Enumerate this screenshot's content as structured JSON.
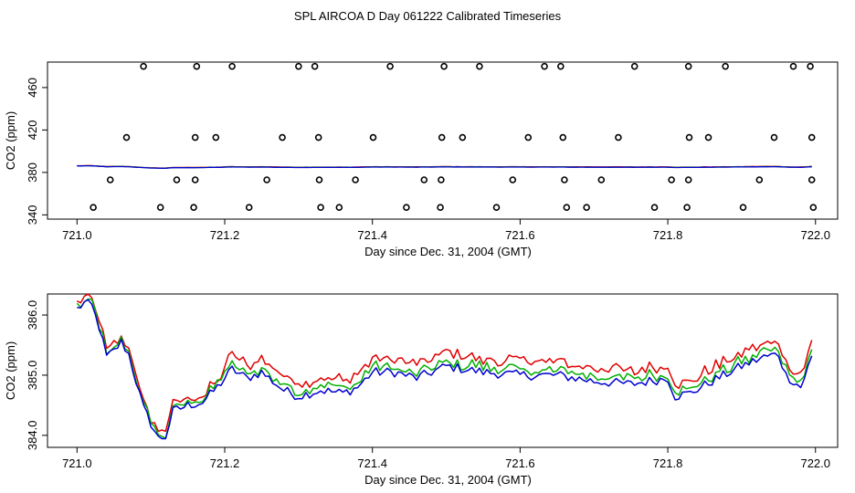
{
  "title": "SPL AIRCOA D  Day 061222  Calibrated Timeseries",
  "chart_data": [
    {
      "type": "scatter+line",
      "xlabel": "Day since Dec. 31, 2004 (GMT)",
      "ylabel": "CO2 (ppm)",
      "xlim": [
        720.96,
        722.03
      ],
      "ylim": [
        336,
        484
      ],
      "xticks": [
        721.0,
        721.2,
        721.4,
        721.6,
        721.8,
        722.0
      ],
      "xtick_labels": [
        "721.0",
        "721.2",
        "721.4",
        "721.6",
        "721.8",
        "722.0"
      ],
      "yticks": [
        340,
        380,
        420,
        460
      ],
      "ytick_labels": [
        "340",
        "380",
        "420",
        "460"
      ],
      "reference_points": {
        "marker": "open-circle",
        "levels": [
          {
            "y": 480,
            "x": [
              721.09,
              721.162,
              721.21,
              721.3,
              721.322,
              721.424,
              721.497,
              721.545,
              721.633,
              721.655,
              721.755,
              721.828,
              721.878,
              721.97,
              721.993
            ]
          },
          {
            "y": 413,
            "x": [
              721.067,
              721.16,
              721.188,
              721.278,
              721.327,
              721.401,
              721.494,
              721.522,
              721.611,
              721.658,
              721.733,
              721.829,
              721.855,
              721.944,
              721.995
            ]
          },
          {
            "y": 373,
            "x": [
              721.045,
              721.135,
              721.16,
              721.257,
              721.328,
              721.377,
              721.47,
              721.493,
              721.59,
              721.66,
              721.71,
              721.805,
              721.828,
              721.924,
              721.995
            ]
          },
          {
            "y": 347,
            "x": [
              721.022,
              721.113,
              721.158,
              721.233,
              721.33,
              721.355,
              721.446,
              721.492,
              721.568,
              721.663,
              721.69,
              721.782,
              721.826,
              721.902,
              721.997
            ]
          }
        ]
      },
      "series": [
        {
          "name": "red",
          "color": "#e00000",
          "offset": 0.35
        },
        {
          "name": "green",
          "color": "#00b000",
          "offset": 0.15
        },
        {
          "name": "blue",
          "color": "#0000d0",
          "offset": 0.0
        }
      ]
    },
    {
      "type": "line",
      "xlabel": "Day since Dec. 31, 2004 (GMT)",
      "ylabel": "CO2 (ppm)",
      "xlim": [
        720.96,
        722.03
      ],
      "ylim": [
        383.8,
        386.35
      ],
      "xticks": [
        721.0,
        721.2,
        721.4,
        721.6,
        721.8,
        722.0
      ],
      "xtick_labels": [
        "721.0",
        "721.2",
        "721.4",
        "721.6",
        "721.8",
        "722.0"
      ],
      "yticks": [
        384.0,
        385.0,
        386.0
      ],
      "ytick_labels": [
        "384.0",
        "385.0",
        "386.0"
      ],
      "x_start": 721.0,
      "x_step": 0.005,
      "blue_keypoints": [
        [
          721.0,
          386.1
        ],
        [
          721.01,
          386.2
        ],
        [
          721.02,
          386.15
        ],
        [
          721.03,
          385.8
        ],
        [
          721.04,
          385.3
        ],
        [
          721.05,
          385.4
        ],
        [
          721.06,
          385.55
        ],
        [
          721.07,
          385.35
        ],
        [
          721.08,
          384.9
        ],
        [
          721.09,
          384.45
        ],
        [
          721.1,
          384.2
        ],
        [
          721.11,
          383.95
        ],
        [
          721.12,
          383.98
        ],
        [
          721.13,
          384.4
        ],
        [
          721.15,
          384.5
        ],
        [
          721.17,
          384.55
        ],
        [
          721.19,
          384.8
        ],
        [
          721.2,
          384.95
        ],
        [
          721.21,
          385.1
        ],
        [
          721.23,
          384.95
        ],
        [
          721.25,
          385.05
        ],
        [
          721.28,
          384.75
        ],
        [
          721.3,
          384.65
        ],
        [
          721.33,
          384.75
        ],
        [
          721.36,
          384.7
        ],
        [
          721.38,
          384.8
        ],
        [
          721.4,
          385.05
        ],
        [
          721.43,
          385.05
        ],
        [
          721.46,
          384.95
        ],
        [
          721.5,
          385.15
        ],
        [
          721.55,
          385.05
        ],
        [
          721.6,
          385.0
        ],
        [
          721.65,
          385.0
        ],
        [
          721.7,
          384.9
        ],
        [
          721.75,
          384.85
        ],
        [
          721.8,
          384.95
        ],
        [
          721.81,
          384.65
        ],
        [
          721.83,
          384.7
        ],
        [
          721.86,
          384.9
        ],
        [
          721.9,
          385.15
        ],
        [
          721.93,
          385.3
        ],
        [
          721.95,
          385.35
        ],
        [
          721.96,
          385.0
        ],
        [
          721.97,
          384.9
        ],
        [
          721.98,
          384.8
        ],
        [
          721.995,
          385.3
        ]
      ],
      "series": [
        {
          "name": "red",
          "color": "#e00000",
          "offset": 0.22,
          "offset_early": 0.1
        },
        {
          "name": "green",
          "color": "#00b000",
          "offset": 0.08,
          "offset_early": 0.04
        },
        {
          "name": "blue",
          "color": "#0000d0",
          "offset": 0.0,
          "offset_early": 0.0
        }
      ]
    }
  ]
}
